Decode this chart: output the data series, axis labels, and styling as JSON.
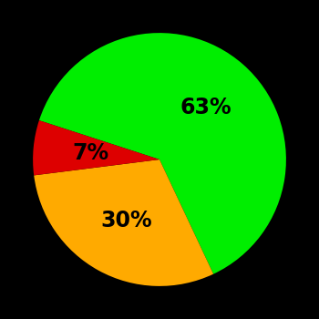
{
  "slices": [
    63,
    30,
    7
  ],
  "colors": [
    "#00ee00",
    "#ffaa00",
    "#dd0000"
  ],
  "labels": [
    "63%",
    "30%",
    "7%"
  ],
  "background_color": "#000000",
  "text_color": "#000000",
  "startangle": 162,
  "figsize": [
    3.5,
    3.5
  ],
  "dpi": 100,
  "label_fontsize": 17,
  "label_fontweight": "bold"
}
